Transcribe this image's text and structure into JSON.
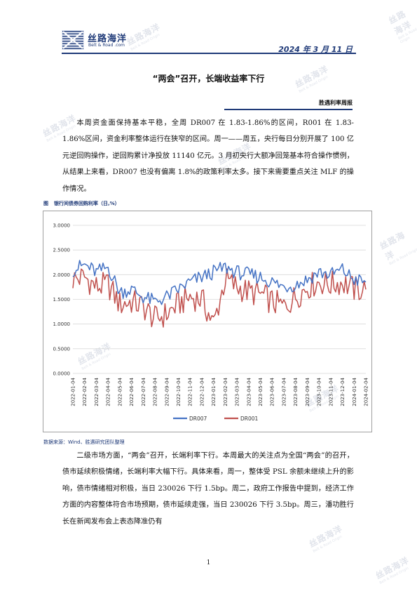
{
  "header": {
    "logo_cn": "丝路海洋",
    "logo_en": "Belt & Road .com",
    "date": "2024 年 3 月 11 日"
  },
  "watermark": {
    "cn": "丝路海洋",
    "en": "Belt & Road Origin"
  },
  "title": "“两会”召开，长端收益率下行",
  "column_tag": "胜遇利率周报",
  "paragraphs": [
    "本周资金面保持基本平稳，全周 DR007 在 1.83-1.86%的区间，R001 在 1.83-1.86%区间，资金利率整体运行在狭窄的区间。周一——周五，央行每日分别开展了 100 亿元逆回购操作，逆回购累计净投放 11140 亿元。3 月初央行大额净回笼基本符合操作惯例，从结果上来看，DR007 也没有偏离 1.8%的政策利率太多。接下来需要重点关注 MLF 的操作情况。",
    "二级市场方面，“两会”召开，长端利率下行。本周最大的关注点为全国“两会”的召开，债市延续积极情绪，长端利率大幅下行。具体来看，周一，整体受 PSL 余额未继续上升的影响，债市情绪相对积极，当日 230026 下行 1.5bp。周二，政府工作报告中提到，经济工作方面的内容整体符合市场预期，债市延续走强，当日 230026 下行 3.5bp。周三，潘功胜行长在新闻发布会上表态降准仍有"
  ],
  "figure": {
    "label": "图",
    "caption": "银行间债券回购利率（日,%）",
    "source": "数据来源：Wind、胜遇研究团队整理"
  },
  "chart_data": {
    "type": "line",
    "title": "",
    "xlabel": "",
    "ylabel": "",
    "ylim": [
      0,
      3
    ],
    "y_ticks": [
      "0.0000",
      "0.5000",
      "1.0000",
      "1.5000",
      "2.0000",
      "2.5000",
      "3.0000"
    ],
    "x": [
      "2022-01-04",
      "2022-02-04",
      "2022-03-04",
      "2022-04-04",
      "2022-05-04",
      "2022-06-04",
      "2022-07-04",
      "2022-08-04",
      "2022-09-04",
      "2022-10-04",
      "2022-11-04",
      "2022-12-04",
      "2023-01-04",
      "2023-02-04",
      "2023-03-04",
      "2023-04-04",
      "2023-05-04",
      "2023-06-04",
      "2023-07-04",
      "2023-08-04",
      "2023-09-04",
      "2023-10-04",
      "2023-11-04",
      "2023-12-04",
      "2024-01-04",
      "2024-02-04"
    ],
    "grid": true,
    "legend": "bottom",
    "series": [
      {
        "name": "DR007",
        "color": "#4472c4",
        "values": [
          2.1,
          2.2,
          2.05,
          2.15,
          1.65,
          1.7,
          1.55,
          1.45,
          1.55,
          1.7,
          1.85,
          1.95,
          2.05,
          2.15,
          2.05,
          2.0,
          1.95,
          1.85,
          1.75,
          1.8,
          1.9,
          2.05,
          2.0,
          2.1,
          1.9,
          1.85
        ]
      },
      {
        "name": "DR001",
        "color": "#c0504d",
        "values": [
          1.9,
          1.95,
          1.75,
          1.8,
          1.4,
          1.45,
          1.35,
          1.1,
          1.2,
          1.4,
          1.55,
          1.5,
          1.0,
          1.9,
          1.75,
          1.65,
          1.6,
          1.45,
          1.35,
          1.55,
          1.75,
          1.85,
          1.8,
          1.85,
          1.7,
          1.7
        ]
      }
    ]
  },
  "page_number": "1"
}
